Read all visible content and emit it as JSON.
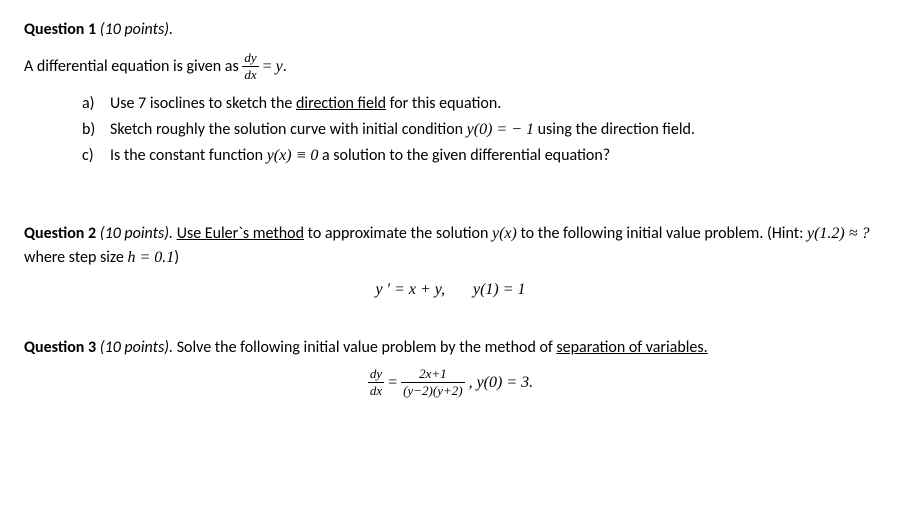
{
  "q1": {
    "header_label": "Question 1",
    "points": " (10 points).",
    "intro_prefix": "A differential equation is given as ",
    "frac_num": "dy",
    "frac_den": "dx",
    "intro_mid": " = ",
    "intro_rhs": "y",
    "intro_suffix": ".",
    "a_letter": "a)",
    "a_pre": "Use 7 isoclines to sketch the ",
    "a_ul": "direction field",
    "a_post": " for this equation.",
    "b_letter": "b)",
    "b_pre": "Sketch roughly the solution curve with initial condition ",
    "b_math": "y(0) = − 1",
    "b_post": " using the direction field.",
    "c_letter": "c)",
    "c_pre": "Is the constant function  ",
    "c_math": "y(x) ≡ 0",
    "c_post": " a solution to the given differential equation?"
  },
  "q2": {
    "header_label": "Question 2",
    "points": " (10 points). ",
    "ul1": "Use Euler`s method",
    "txt1": " to approximate the solution ",
    "m1": "y(x)",
    "txt2": " to the following initial value problem. (Hint: ",
    "m2": "y(1.2) ≈ ?",
    "txt3": "  where step size ",
    "m3": "h = 0.1",
    "txt4": ")",
    "eq_left": "y ′ = x + y,",
    "eq_right": "y(1) = 1"
  },
  "q3": {
    "header_label": "Question 3",
    "points": " (10 points).",
    "txt1": "  Solve the following initial value problem by the method of ",
    "ul1": "separation of variables.",
    "frac1_num": "dy",
    "frac1_den": "dx",
    "mid": " = ",
    "frac2_num": "2x+1",
    "frac2_den": "(y−2)(y+2)",
    "tail": " , y(0) = 3."
  }
}
